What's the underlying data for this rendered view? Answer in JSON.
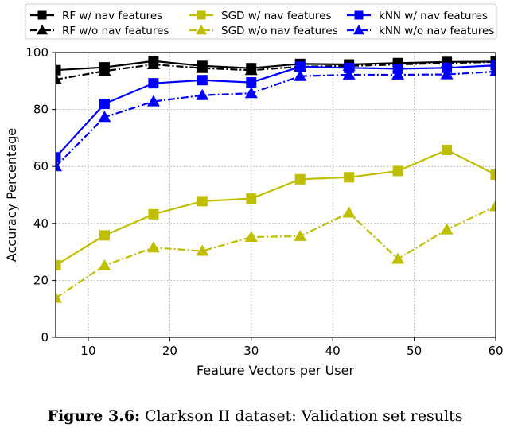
{
  "chart_data": {
    "type": "line",
    "xlabel": "Feature Vectors per User",
    "ylabel": "Accuracy Percentage",
    "xlim": [
      6,
      60
    ],
    "ylim": [
      0,
      100
    ],
    "xticks": [
      10,
      20,
      30,
      40,
      50,
      60
    ],
    "yticks": [
      0,
      20,
      40,
      60,
      80,
      100
    ],
    "grid": true,
    "legend_position": "top",
    "x": [
      6,
      12,
      18,
      24,
      30,
      36,
      42,
      48,
      54,
      60
    ],
    "series": [
      {
        "name": "RF w/ nav features",
        "color": "#000000",
        "marker": "square",
        "dash": "solid",
        "values": [
          93.8,
          94.8,
          97.0,
          95.3,
          94.5,
          96.0,
          95.8,
          96.3,
          96.7,
          96.8
        ]
      },
      {
        "name": "RF w/o nav features",
        "color": "#000000",
        "marker": "triangle",
        "dash": "dashdot",
        "values": [
          90.5,
          93.5,
          95.8,
          94.5,
          93.8,
          95.0,
          95.3,
          95.8,
          96.3,
          96.7
        ]
      },
      {
        "name": "SGD w/ nav features",
        "color": "#bfbf00",
        "marker": "square",
        "dash": "solid",
        "values": [
          25.3,
          35.8,
          43.2,
          47.8,
          48.7,
          55.5,
          56.2,
          58.4,
          65.8,
          57.1
        ]
      },
      {
        "name": "SGD w/o nav features",
        "color": "#bfbf00",
        "marker": "triangle",
        "dash": "dashdot",
        "values": [
          13.8,
          25.2,
          31.5,
          30.3,
          35.2,
          35.5,
          43.7,
          27.5,
          37.8,
          46.0
        ]
      },
      {
        "name": "kNN w/ nav features",
        "color": "#0000ff",
        "marker": "square",
        "dash": "solid",
        "values": [
          63.2,
          82.0,
          89.2,
          90.3,
          89.5,
          95.0,
          94.6,
          94.3,
          94.6,
          95.5
        ]
      },
      {
        "name": "kNN w/o nav features",
        "color": "#0000ff",
        "marker": "triangle",
        "dash": "dashdot",
        "values": [
          60.0,
          77.3,
          82.8,
          85.0,
          85.7,
          91.7,
          92.2,
          92.2,
          92.3,
          93.3
        ]
      }
    ]
  },
  "caption": {
    "label": "Figure 3.6:",
    "text": "Clarkson II dataset: Validation set results"
  }
}
